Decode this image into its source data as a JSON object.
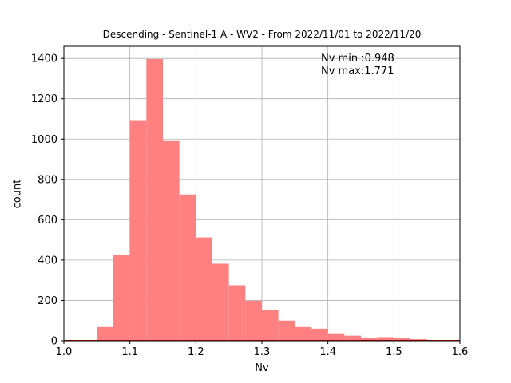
{
  "chart_data": {
    "type": "bar",
    "title": "Descending - Sentinel-1 A - WV2 - From 2022/11/01 to 2022/11/20",
    "xlabel": "Nv",
    "ylabel": "count",
    "xlim": [
      1.0,
      1.6
    ],
    "ylim": [
      0,
      1460
    ],
    "xticks": [
      "1.0",
      "1.1",
      "1.2",
      "1.3",
      "1.4",
      "1.5",
      "1.6"
    ],
    "yticks": [
      "0",
      "200",
      "400",
      "600",
      "800",
      "1000",
      "1200",
      "1400"
    ],
    "grid": true,
    "bar_color": "#ff8080",
    "baseline_color": "#cc0000",
    "bins": [
      {
        "x0": 0.95,
        "x1": 0.975,
        "value": 0
      },
      {
        "x0": 0.975,
        "x1": 1.0,
        "value": 0
      },
      {
        "x0": 1.0,
        "x1": 1.025,
        "value": 0
      },
      {
        "x0": 1.025,
        "x1": 1.05,
        "value": 0
      },
      {
        "x0": 1.05,
        "x1": 1.075,
        "value": 68
      },
      {
        "x0": 1.075,
        "x1": 1.1,
        "value": 425
      },
      {
        "x0": 1.1,
        "x1": 1.125,
        "value": 1090
      },
      {
        "x0": 1.125,
        "x1": 1.15,
        "value": 1397
      },
      {
        "x0": 1.15,
        "x1": 1.175,
        "value": 990
      },
      {
        "x0": 1.175,
        "x1": 1.2,
        "value": 725
      },
      {
        "x0": 1.2,
        "x1": 1.225,
        "value": 512
      },
      {
        "x0": 1.225,
        "x1": 1.25,
        "value": 382
      },
      {
        "x0": 1.25,
        "x1": 1.275,
        "value": 275
      },
      {
        "x0": 1.275,
        "x1": 1.3,
        "value": 198
      },
      {
        "x0": 1.3,
        "x1": 1.325,
        "value": 153
      },
      {
        "x0": 1.325,
        "x1": 1.35,
        "value": 100
      },
      {
        "x0": 1.35,
        "x1": 1.375,
        "value": 68
      },
      {
        "x0": 1.375,
        "x1": 1.4,
        "value": 60
      },
      {
        "x0": 1.4,
        "x1": 1.425,
        "value": 37
      },
      {
        "x0": 1.425,
        "x1": 1.45,
        "value": 25
      },
      {
        "x0": 1.45,
        "x1": 1.475,
        "value": 15
      },
      {
        "x0": 1.475,
        "x1": 1.5,
        "value": 18
      },
      {
        "x0": 1.5,
        "x1": 1.525,
        "value": 14
      },
      {
        "x0": 1.525,
        "x1": 1.55,
        "value": 8
      },
      {
        "x0": 1.55,
        "x1": 1.575,
        "value": 3
      },
      {
        "x0": 1.575,
        "x1": 1.6,
        "value": 1
      }
    ],
    "annotations": {
      "nv_min": "Nv min :0.948",
      "nv_max": "Nv max:1.771"
    }
  }
}
